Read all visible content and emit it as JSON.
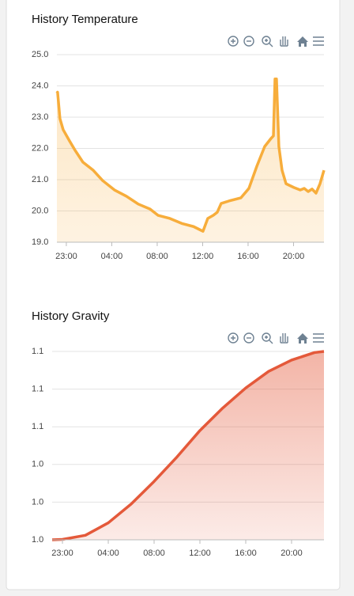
{
  "chart_data": [
    {
      "type": "area",
      "title": "History Temperature",
      "color": "#f7ad3b",
      "grid": true,
      "x": [
        -0.83,
        -0.77,
        -0.56,
        -0.28,
        0.28,
        0.77,
        1.46,
        2.37,
        3.2,
        4.24,
        5.29,
        6.33,
        7.37,
        8.07,
        9.11,
        10.16,
        11.2,
        12.03,
        12.45,
        12.94,
        13.29,
        13.63,
        14.33,
        15.37,
        16.07,
        16.77,
        17.46,
        18.02,
        18.23,
        18.37,
        18.5,
        18.71,
        18.99,
        19.34,
        20.03,
        20.59,
        20.94,
        21.29,
        21.63,
        21.98,
        22.33,
        22.68
      ],
      "values": [
        23.76,
        23.8,
        22.95,
        22.6,
        22.24,
        21.94,
        21.56,
        21.3,
        20.97,
        20.67,
        20.47,
        20.22,
        20.06,
        19.86,
        19.76,
        19.6,
        19.5,
        19.35,
        19.76,
        19.86,
        19.96,
        20.24,
        20.32,
        20.42,
        20.72,
        21.43,
        22.06,
        22.32,
        22.4,
        24.22,
        24.22,
        22.06,
        21.3,
        20.87,
        20.75,
        20.67,
        20.72,
        20.62,
        20.7,
        20.57,
        20.87,
        21.3
      ],
      "xlim": [
        -0.83,
        22.68
      ],
      "xticks": [
        {
          "value": 0,
          "label": "23:00"
        },
        {
          "value": 4,
          "label": "04:00"
        },
        {
          "value": 8,
          "label": "08:00"
        },
        {
          "value": 12,
          "label": "12:00"
        },
        {
          "value": 16,
          "label": "16:00"
        },
        {
          "value": 20,
          "label": "20:00"
        }
      ],
      "ylim": [
        19,
        25
      ],
      "yticks": [
        {
          "value": 19,
          "label": "19.0"
        },
        {
          "value": 20,
          "label": "20.0"
        },
        {
          "value": 21,
          "label": "21.0"
        },
        {
          "value": 22,
          "label": "22.0"
        },
        {
          "value": 23,
          "label": "23.0"
        },
        {
          "value": 24,
          "label": "24.0"
        },
        {
          "value": 25,
          "label": "25.0"
        }
      ]
    },
    {
      "type": "area",
      "title": "History Gravity",
      "color": "#e4593a",
      "grid": true,
      "x": [
        -0.9,
        0,
        2,
        4,
        6,
        8,
        10,
        12,
        14,
        16,
        18,
        20,
        22,
        22.83
      ],
      "values": [
        1.02,
        1.0201,
        1.0212,
        1.0245,
        1.0295,
        1.0355,
        1.042,
        1.049,
        1.055,
        1.0603,
        1.0647,
        1.0677,
        1.0697,
        1.07
      ],
      "xlim": [
        -0.9,
        22.83
      ],
      "xticks": [
        {
          "value": 0,
          "label": "23:00"
        },
        {
          "value": 4,
          "label": "04:00"
        },
        {
          "value": 8,
          "label": "08:00"
        },
        {
          "value": 12,
          "label": "12:00"
        },
        {
          "value": 16,
          "label": "16:00"
        },
        {
          "value": 20,
          "label": "20:00"
        }
      ],
      "ylim": [
        1.02,
        1.07
      ],
      "yticks": [
        {
          "value": 1.02,
          "label": "1.0"
        },
        {
          "value": 1.03,
          "label": "1.0"
        },
        {
          "value": 1.04,
          "label": "1.0"
        },
        {
          "value": 1.05,
          "label": "1.1"
        },
        {
          "value": 1.06,
          "label": "1.1"
        },
        {
          "value": 1.07,
          "label": "1.1"
        }
      ]
    }
  ]
}
